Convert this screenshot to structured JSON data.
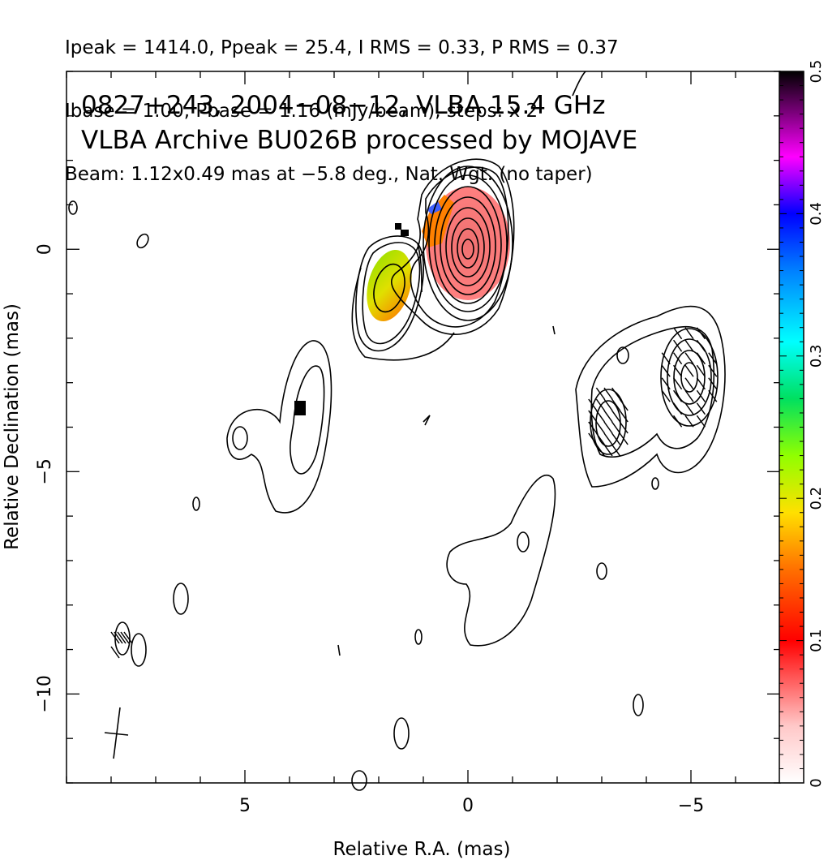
{
  "header": {
    "line1": "Ipeak = 1414.0, Ppeak = 25.4, I RMS = 0.33, P RMS = 0.37",
    "line2": "Ibase = 1.00, Pbase = 1.16 (mJy/beam), steps: x 2",
    "line3": "Beam: 1.12x0.49 mas at −5.8 deg., Nat. Wgt. (no taper)"
  },
  "chart_data": {
    "type": "heatmap",
    "title": "0827+243, 2004−08−12, VLBA 15.4 GHz",
    "subtitle": "VLBA Archive BU026B processed by MOJAVE",
    "xlabel": "Relative R.A. (mas)",
    "ylabel": "Relative Declination (mas)",
    "xlim": [
      9,
      -7
    ],
    "ylim": [
      -12,
      4
    ],
    "x_ticks": [
      {
        "value": 5,
        "label": "5"
      },
      {
        "value": 0,
        "label": "0"
      },
      {
        "value": -5,
        "label": "−5"
      }
    ],
    "y_ticks": [
      {
        "value": 0,
        "label": "0"
      },
      {
        "value": -5,
        "label": "−5"
      },
      {
        "value": -10,
        "label": "−10"
      }
    ],
    "colorbar": {
      "range": [
        0,
        0.5
      ],
      "ticks": [
        {
          "value": 0,
          "label": "0"
        },
        {
          "value": 0.1,
          "label": "0.1"
        },
        {
          "value": 0.2,
          "label": "0.2"
        },
        {
          "value": 0.3,
          "label": "0.3"
        },
        {
          "value": 0.4,
          "label": "0.4"
        },
        {
          "value": 0.5,
          "label": "0.5"
        }
      ]
    },
    "core": {
      "x": 0,
      "y": 0,
      "peak_mJy_per_beam": 1414.0
    },
    "components": [
      {
        "x": 0,
        "y": 0,
        "contours": 10
      },
      {
        "x": 1.8,
        "y": -1.0,
        "contours": 3
      },
      {
        "x": -5.0,
        "y": -3.0,
        "contours": 4
      },
      {
        "x": -3.0,
        "y": -4.0,
        "contours": 2
      }
    ],
    "polarization_regions": [
      {
        "x": 0.0,
        "y": 0.0,
        "fraction": 0.05
      },
      {
        "x": 1.8,
        "y": -1.0,
        "fraction": 0.2
      },
      {
        "x": 0.8,
        "y": 0.6,
        "fraction": 0.3
      }
    ],
    "beam": {
      "major_mas": 1.12,
      "minor_mas": 0.49,
      "pa_deg": -5.8
    }
  }
}
